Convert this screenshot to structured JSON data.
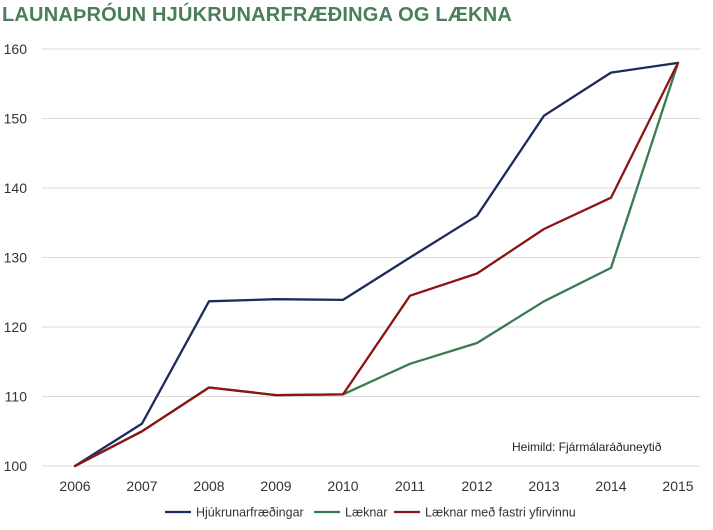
{
  "chart_data": {
    "type": "line",
    "title": "LAUNAÞRÓUN HJÚKRUNARFRÆÐINGA OG LÆKNA",
    "xlabel": "",
    "ylabel": "",
    "categories": [
      "2006",
      "2007",
      "2008",
      "2009",
      "2010",
      "2011",
      "2012",
      "2013",
      "2014",
      "2015"
    ],
    "ylim": [
      100,
      160
    ],
    "yticks": [
      100,
      110,
      120,
      130,
      140,
      150,
      160
    ],
    "grid": true,
    "legend_position": "bottom",
    "series": [
      {
        "name": "Hjúkrunarfræðingar",
        "color": "#1c2a5e",
        "values": [
          100,
          106.1,
          123.7,
          124.0,
          123.9,
          130.0,
          136.0,
          150.4,
          156.6,
          158.0
        ]
      },
      {
        "name": "Læknar",
        "color": "#3a7a52",
        "values": [
          100,
          105.0,
          111.3,
          110.2,
          110.3,
          114.7,
          117.7,
          123.7,
          128.5,
          158.0
        ]
      },
      {
        "name": "Læknar með fastri yfirvinnu",
        "color": "#8c1414",
        "values": [
          100,
          105.0,
          111.3,
          110.2,
          110.3,
          124.5,
          127.7,
          134.1,
          138.6,
          158.0
        ]
      }
    ],
    "annotation": "Heimild: Fjármálaráðuneytið"
  }
}
